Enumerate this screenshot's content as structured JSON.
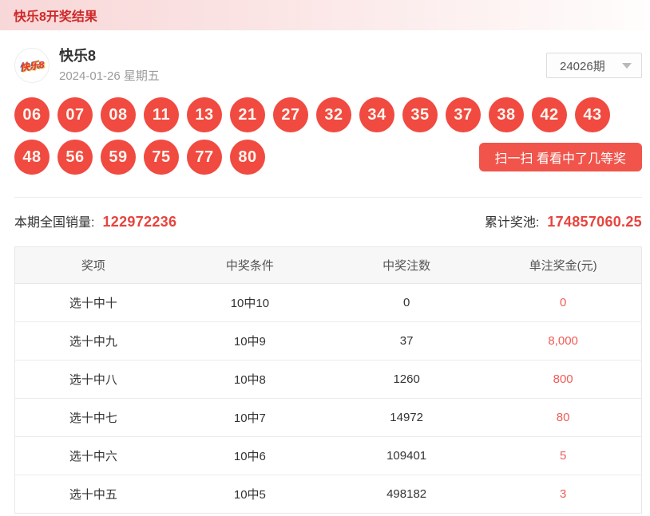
{
  "page_header": {
    "title": "快乐8开奖结果"
  },
  "draw": {
    "game_name": "快乐8",
    "logo_text": "快乐8",
    "date": "2024-01-26 星期五",
    "issue_selector": {
      "value": "24026期"
    },
    "numbers": [
      "06",
      "07",
      "08",
      "11",
      "13",
      "21",
      "27",
      "32",
      "34",
      "35",
      "37",
      "38",
      "42",
      "43",
      "48",
      "56",
      "59",
      "75",
      "77",
      "80"
    ],
    "scan_button_label": "扫一扫 看看中了几等奖"
  },
  "stats": {
    "sales_label": "本期全国销量:",
    "sales_value": "122972236",
    "pool_label": "累计奖池:",
    "pool_value": "174857060.25"
  },
  "prize_table": {
    "headers": [
      "奖项",
      "中奖条件",
      "中奖注数",
      "单注奖金(元)"
    ],
    "rows": [
      {
        "prize": "选十中十",
        "condition": "10中10",
        "winners": "0",
        "amount": "0"
      },
      {
        "prize": "选十中九",
        "condition": "10中9",
        "winners": "37",
        "amount": "8,000"
      },
      {
        "prize": "选十中八",
        "condition": "10中8",
        "winners": "1260",
        "amount": "800"
      },
      {
        "prize": "选十中七",
        "condition": "10中7",
        "winners": "14972",
        "amount": "80"
      },
      {
        "prize": "选十中六",
        "condition": "10中6",
        "winners": "109401",
        "amount": "5"
      },
      {
        "prize": "选十中五",
        "condition": "10中5",
        "winners": "498182",
        "amount": "3"
      }
    ]
  },
  "colors": {
    "ball_red": "#f04a41",
    "banner_text_red": "#cf2a2a",
    "stat_value_red": "#e8433d",
    "table_amount_red": "#f05b55"
  }
}
